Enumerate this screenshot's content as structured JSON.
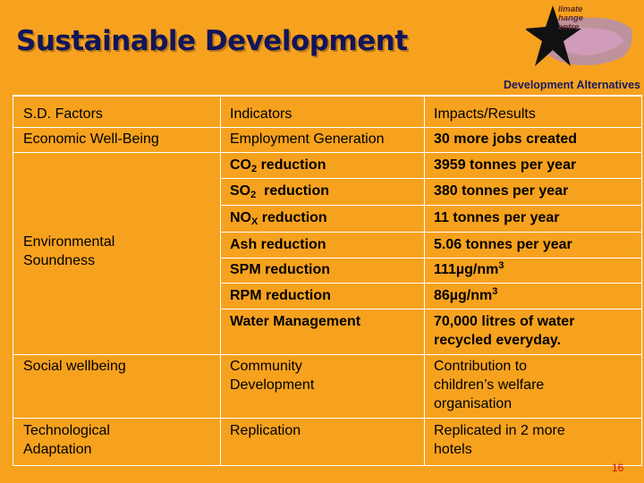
{
  "slide": {
    "title": "Sustainable Development",
    "org": "Development Alternatives",
    "logo_text_1": "limate",
    "logo_text_2": "hange",
    "logo_text_3": "entre",
    "page_number": "16"
  },
  "table": {
    "headers": [
      "S.D. Factors",
      "Indicators",
      "Impacts/Results"
    ],
    "factors": {
      "economic": "Economic Well-Being",
      "environmental_1": "Environmental",
      "environmental_2": "Soundness",
      "social": "Social wellbeing",
      "tech_1": "Technological",
      "tech_2": "Adaptation"
    },
    "indicators": {
      "employment": "Employment Generation",
      "co2_a": "CO",
      "co2_sub": "2",
      "co2_b": " reduction",
      "so2_a": "SO",
      "so2_sub": "2",
      "so2_b": "  reduction",
      "nox_a": "NO",
      "nox_sub": "X",
      "nox_b": " reduction",
      "ash": "Ash reduction",
      "spm": "SPM reduction",
      "rpm": "RPM reduction",
      "water": "Water Management",
      "community_1": "Community",
      "community_2": "Development",
      "replication": "Replication"
    },
    "impacts": {
      "jobs": "30 more jobs created",
      "co2": "3959 tonnes per year",
      "so2": "380 tonnes per year",
      "nox": "11 tonnes per year",
      "ash": "5.06 tonnes per year",
      "spm_a": "111µg/nm",
      "spm_sup": "3",
      "rpm_a": "86µg/nm",
      "rpm_sup": "3",
      "water_1": "70,000 litres of water",
      "water_2": "recycled everyday.",
      "social_1": "Contribution to",
      "social_2": "children’s welfare",
      "social_3": "organisation",
      "tech_1": "Replicated in 2 more",
      "tech_2": "hotels"
    }
  }
}
